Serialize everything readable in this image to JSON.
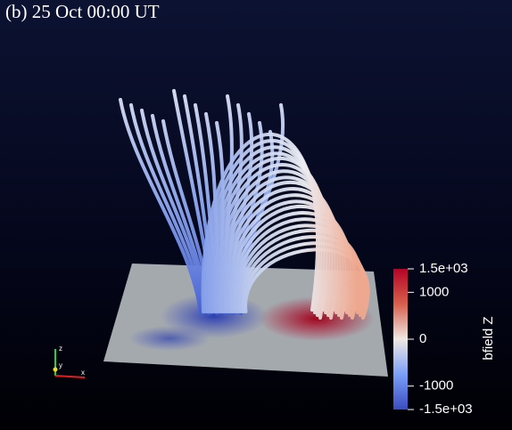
{
  "title": "(b) 25 Oct 00:00 UT",
  "colorbar": {
    "label": "bfield Z",
    "range": [
      -1500,
      1500
    ],
    "ticks": [
      {
        "value": 1500,
        "label": "1.5e+03"
      },
      1000,
      0,
      -1000,
      {
        "value": -1500,
        "label": "-1.5e+03"
      }
    ]
  },
  "axes": {
    "x": "x",
    "y": "y",
    "z": "z"
  }
}
